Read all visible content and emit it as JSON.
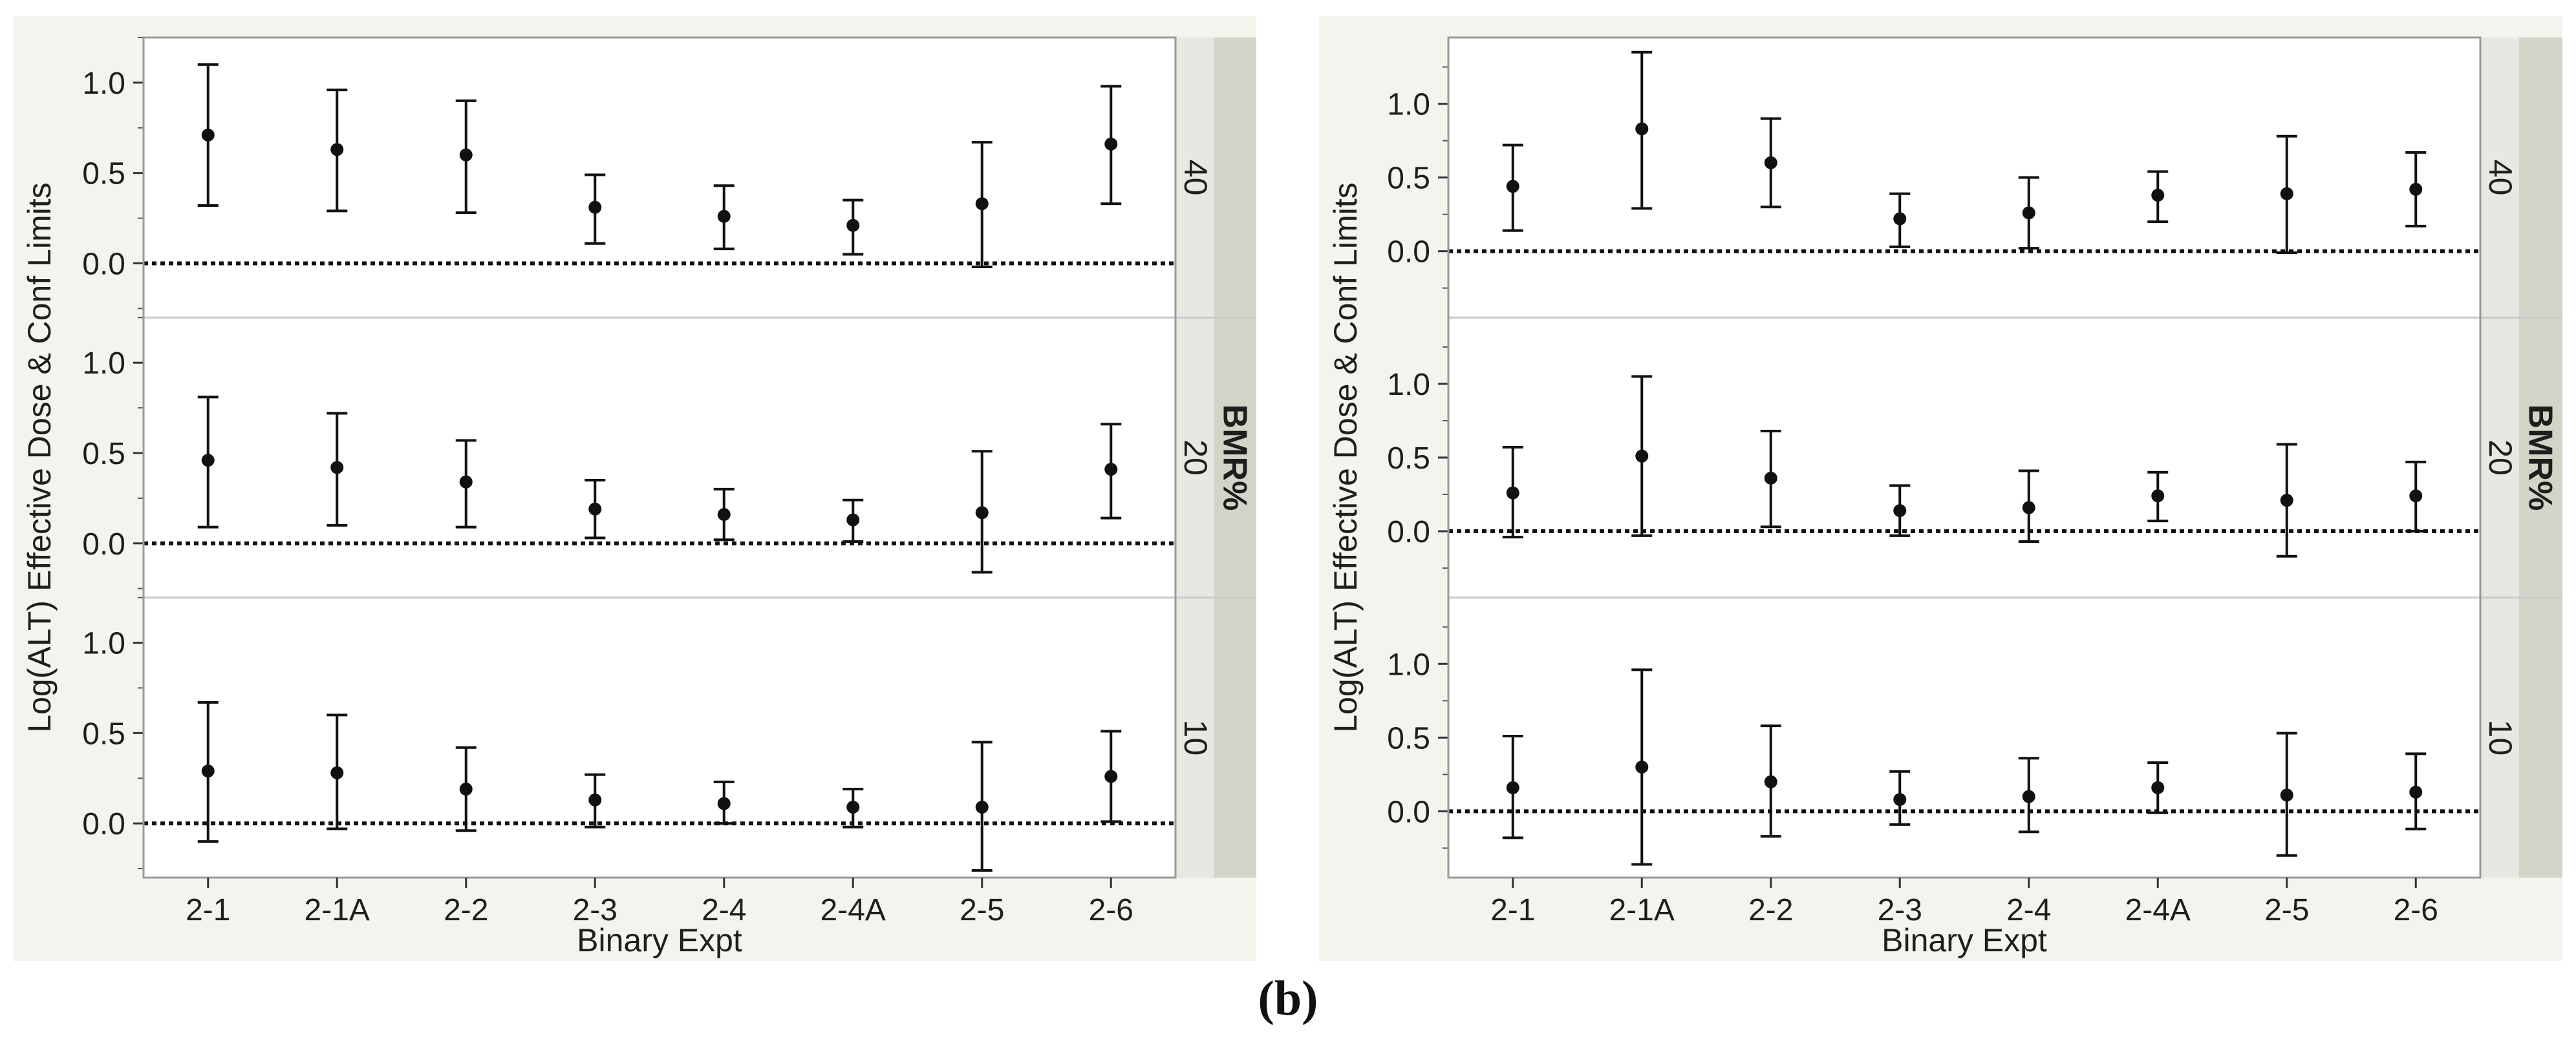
{
  "figure": {
    "caption": "(b)"
  },
  "chart_data": [
    {
      "type": "scatter",
      "subtype": "point-with-error-bars",
      "xlabel": "Binary Expt",
      "ylabel": "Log(ALT) Effective Dose & Conf Limits",
      "facet_label": "BMR%",
      "categories": [
        "2-1",
        "2-1A",
        "2-2",
        "2-3",
        "2-4",
        "2-4A",
        "2-5",
        "2-6"
      ],
      "reference_line": 0.0,
      "panels": [
        {
          "label": "40",
          "ylim": [
            -0.3,
            1.25
          ],
          "yticks": [
            0.0,
            0.5,
            1.0
          ],
          "ytick_labels": [
            "0.0",
            "0.5",
            "1.0"
          ],
          "estimate": [
            0.71,
            0.63,
            0.6,
            0.31,
            0.26,
            0.21,
            0.33,
            0.66
          ],
          "lower": [
            0.32,
            0.29,
            0.28,
            0.11,
            0.08,
            0.05,
            -0.02,
            0.33
          ],
          "upper": [
            1.1,
            0.96,
            0.9,
            0.49,
            0.43,
            0.35,
            0.67,
            0.98
          ]
        },
        {
          "label": "20",
          "ylim": [
            -0.3,
            1.25
          ],
          "yticks": [
            0.0,
            0.5,
            1.0
          ],
          "ytick_labels": [
            "0.0",
            "0.5",
            "1.0"
          ],
          "estimate": [
            0.46,
            0.42,
            0.34,
            0.19,
            0.16,
            0.13,
            0.17,
            0.41
          ],
          "lower": [
            0.09,
            0.1,
            0.09,
            0.03,
            0.02,
            0.01,
            -0.16,
            0.14
          ],
          "upper": [
            0.81,
            0.72,
            0.57,
            0.35,
            0.3,
            0.24,
            0.51,
            0.66
          ]
        },
        {
          "label": "10",
          "ylim": [
            -0.3,
            1.25
          ],
          "yticks": [
            0.0,
            0.5,
            1.0
          ],
          "ytick_labels": [
            "0.0",
            "0.5",
            "1.0"
          ],
          "estimate": [
            0.29,
            0.28,
            0.19,
            0.13,
            0.11,
            0.09,
            0.09,
            0.26
          ],
          "lower": [
            -0.1,
            -0.03,
            -0.04,
            -0.02,
            0.0,
            -0.02,
            -0.26,
            0.01
          ],
          "upper": [
            0.67,
            0.6,
            0.42,
            0.27,
            0.23,
            0.19,
            0.45,
            0.51
          ]
        }
      ]
    },
    {
      "type": "scatter",
      "subtype": "point-with-error-bars",
      "xlabel": "Binary Expt",
      "ylabel": "Log(ALT) Effective Dose & Conf Limits",
      "facet_label": "BMR%",
      "categories": [
        "2-1",
        "2-1A",
        "2-2",
        "2-3",
        "2-4",
        "2-4A",
        "2-5",
        "2-6"
      ],
      "reference_line": 0.0,
      "panels": [
        {
          "label": "40",
          "ylim": [
            -0.45,
            1.45
          ],
          "yticks": [
            0.0,
            0.5,
            1.0
          ],
          "ytick_labels": [
            "0.0",
            "0.5",
            "1.0"
          ],
          "estimate": [
            0.44,
            0.83,
            0.6,
            0.22,
            0.26,
            0.38,
            0.39,
            0.42
          ],
          "lower": [
            0.14,
            0.29,
            0.3,
            0.03,
            0.02,
            0.2,
            -0.01,
            0.17
          ],
          "upper": [
            0.72,
            1.35,
            0.9,
            0.39,
            0.5,
            0.54,
            0.78,
            0.67
          ]
        },
        {
          "label": "20",
          "ylim": [
            -0.45,
            1.45
          ],
          "yticks": [
            0.0,
            0.5,
            1.0
          ],
          "ytick_labels": [
            "0.0",
            "0.5",
            "1.0"
          ],
          "estimate": [
            0.26,
            0.51,
            0.36,
            0.14,
            0.16,
            0.24,
            0.21,
            0.24
          ],
          "lower": [
            -0.04,
            -0.03,
            0.03,
            -0.03,
            -0.07,
            0.07,
            -0.17,
            0.0
          ],
          "upper": [
            0.57,
            1.05,
            0.68,
            0.31,
            0.41,
            0.4,
            0.59,
            0.47
          ]
        },
        {
          "label": "10",
          "ylim": [
            -0.45,
            1.45
          ],
          "yticks": [
            0.0,
            0.5,
            1.0
          ],
          "ytick_labels": [
            "0.0",
            "0.5",
            "1.0"
          ],
          "estimate": [
            0.16,
            0.3,
            0.2,
            0.08,
            0.1,
            0.16,
            0.11,
            0.13
          ],
          "lower": [
            -0.18,
            -0.36,
            -0.17,
            -0.09,
            -0.14,
            -0.01,
            -0.3,
            -0.12
          ],
          "upper": [
            0.51,
            0.96,
            0.58,
            0.27,
            0.36,
            0.33,
            0.53,
            0.39
          ]
        }
      ]
    }
  ]
}
